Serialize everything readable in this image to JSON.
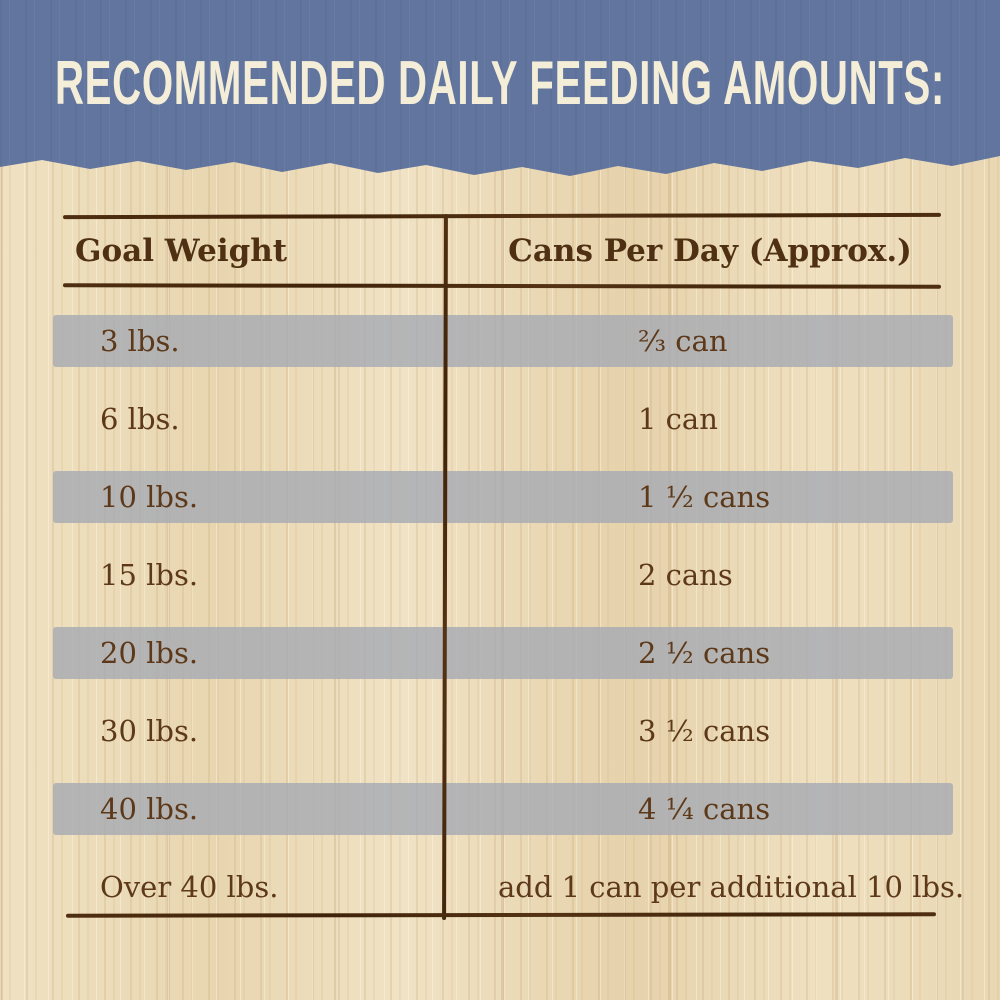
{
  "chart_data": {
    "type": "table",
    "title": "RECOMMENDED DAILY FEEDING AMOUNTS:",
    "columns": [
      "Goal Weight",
      "Cans Per Day (Approx.)"
    ],
    "rows": [
      [
        "3 lbs.",
        "²⁄₃ can"
      ],
      [
        "6 lbs.",
        "1 can"
      ],
      [
        "10 lbs.",
        "1 ½ cans"
      ],
      [
        "15 lbs.",
        "2 cans"
      ],
      [
        "20 lbs.",
        "2 ½ cans"
      ],
      [
        "30 lbs.",
        "3 ½ cans"
      ],
      [
        "40 lbs.",
        "4 ¼ cans"
      ],
      [
        "Over 40 lbs.",
        "add 1 can per additional 10 lbs."
      ]
    ],
    "shaded_row_indices": [
      0,
      2,
      4,
      6
    ],
    "legend_position": "none",
    "grid": "hand-drawn header rule, bottom rule and single column divider"
  },
  "colors": {
    "band_blue": "#61759e",
    "title_cream": "#f4edd8",
    "head_brown": "#4f3013",
    "text_brown": "#5d3919",
    "line_brown": "#4a2a0e",
    "wood_tan": "#ecdcbc",
    "row_shade": "rgba(167,171,179,0.82)"
  }
}
